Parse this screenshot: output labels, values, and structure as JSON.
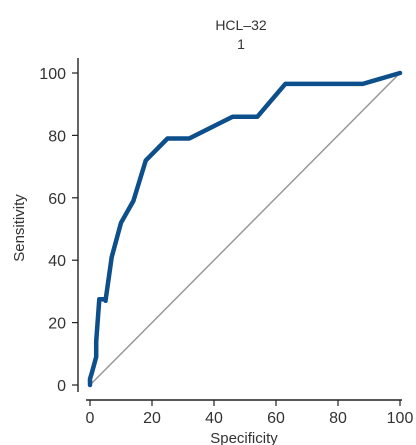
{
  "chart_data": {
    "type": "line",
    "title": "HCL–32",
    "subtitle": "1",
    "xlabel": "Specificity",
    "ylabel": "Sensitivity",
    "xlim": [
      0,
      100
    ],
    "ylim": [
      0,
      100
    ],
    "x_ticks": [
      "0",
      "20",
      "40",
      "60",
      "80",
      "100"
    ],
    "y_ticks": [
      "0",
      "20",
      "40",
      "60",
      "80",
      "100"
    ],
    "grid": false,
    "legend": "none",
    "series": [
      {
        "color": "#0d4f8b",
        "x": [
          0,
          0,
          0.5,
          2,
          2,
          2.5,
          3,
          5,
          5,
          7,
          10,
          14,
          18,
          25,
          32,
          46,
          54,
          63,
          88,
          100
        ],
        "y": [
          0,
          2,
          3.5,
          9,
          14,
          21,
          27.5,
          27.5,
          27,
          41,
          52,
          59,
          72,
          79,
          79,
          86,
          86,
          96.5,
          96.5,
          100
        ]
      },
      {
        "color": "#999999",
        "x": [
          0,
          100
        ],
        "y": [
          0,
          100
        ]
      }
    ]
  }
}
